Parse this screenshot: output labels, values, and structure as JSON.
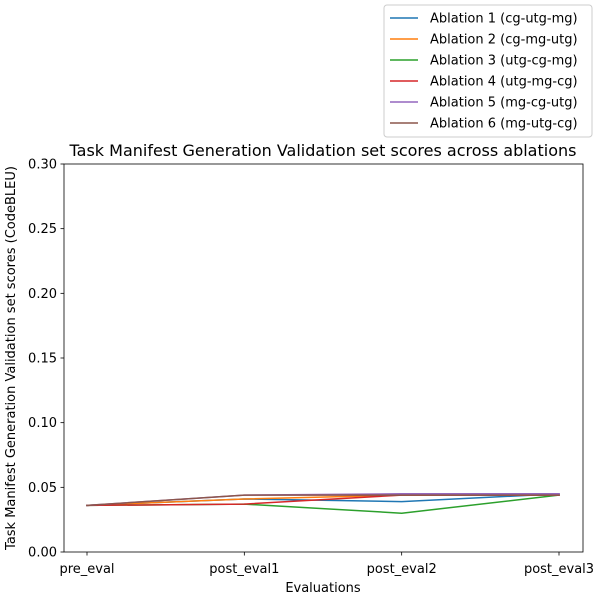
{
  "chart_data": {
    "type": "line",
    "title": "Task Manifest Generation Validation set scores across ablations",
    "xlabel": "Evaluations",
    "ylabel": "Task Manifest Generation Validation set scores (CodeBLEU)",
    "categories": [
      "pre_eval",
      "post_eval1",
      "post_eval2",
      "post_eval3"
    ],
    "ylim": [
      0,
      0.3
    ],
    "yticks": [
      "0.00",
      "0.05",
      "0.10",
      "0.15",
      "0.20",
      "0.25",
      "0.30"
    ],
    "grid": false,
    "legend_position": "top-right",
    "series": [
      {
        "name": "Ablation 1 (cg-utg-mg)",
        "color": "#1f77b4",
        "values": [
          0.036,
          0.041,
          0.039,
          0.045
        ]
      },
      {
        "name": "Ablation 2 (cg-mg-utg)",
        "color": "#ff7f0e",
        "values": [
          0.036,
          0.041,
          0.044,
          0.044
        ]
      },
      {
        "name": "Ablation 3 (utg-cg-mg)",
        "color": "#2ca02c",
        "values": [
          0.036,
          0.037,
          0.03,
          0.044
        ]
      },
      {
        "name": "Ablation 4 (utg-mg-cg)",
        "color": "#d62728",
        "values": [
          0.036,
          0.037,
          0.044,
          0.044
        ]
      },
      {
        "name": "Ablation 5 (mg-cg-utg)",
        "color": "#9467bd",
        "values": [
          0.036,
          0.044,
          0.045,
          0.045
        ]
      },
      {
        "name": "Ablation 6 (mg-utg-cg)",
        "color": "#8c564b",
        "values": [
          0.036,
          0.044,
          0.044,
          0.044
        ]
      }
    ]
  }
}
